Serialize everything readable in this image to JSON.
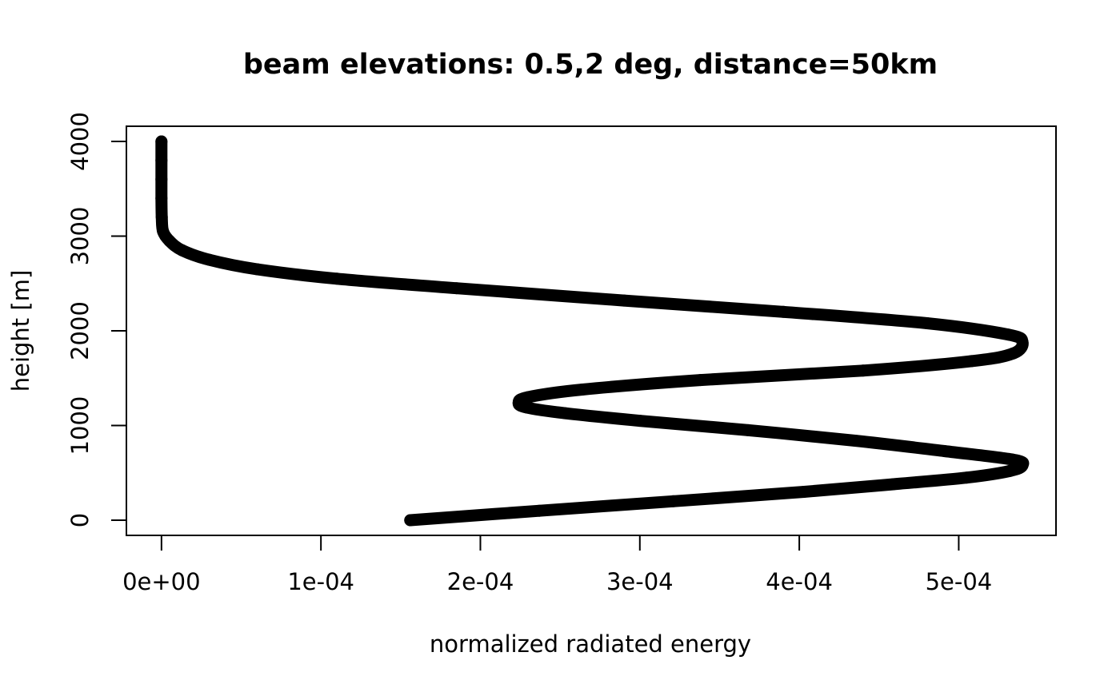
{
  "chart_data": {
    "type": "line",
    "title": "beam elevations: 0.5,2 deg, distance=50km",
    "xlabel": "normalized radiated energy",
    "ylabel": "height [m]",
    "xlim": [
      -2.2e-05,
      0.000561
    ],
    "ylim": [
      -160,
      4160
    ],
    "x_ticks": [
      0,
      0.0001,
      0.0002,
      0.0003,
      0.0004,
      0.0005
    ],
    "x_tick_labels": [
      "0e+00",
      "1e-04",
      "2e-04",
      "3e-04",
      "4e-04",
      "5e-04"
    ],
    "y_ticks": [
      0,
      1000,
      2000,
      3000,
      4000
    ],
    "y_tick_labels": [
      "0",
      "1000",
      "2000",
      "3000",
      "4000"
    ],
    "grid": false,
    "series": [
      {
        "color": "#000000",
        "x": [
          0.000156,
          0.000237,
          0.000321,
          0.000403,
          0.000459,
          0.000505,
          0.000532,
          0.00054,
          0.000534,
          0.000491,
          0.000435,
          0.000368,
          0.0003,
          0.000253,
          0.000229,
          0.000224,
          0.00023,
          0.000264,
          0.000338,
          0.00044,
          0.000508,
          0.000534,
          0.00054,
          0.000531,
          0.00048,
          0.00039,
          0.00029,
          0.000185,
          0.00011,
          6e-05,
          3e-05,
          1.3e-05,
          5e-06,
          1e-06,
          2e-07,
          0.0,
          0.0,
          0.0,
          0.0
        ],
        "y": [
          0,
          100,
          200,
          300,
          380,
          450,
          520,
          580,
          640,
          730,
          840,
          950,
          1050,
          1130,
          1190,
          1240,
          1300,
          1380,
          1480,
          1580,
          1680,
          1760,
          1880,
          1960,
          2080,
          2200,
          2320,
          2450,
          2550,
          2650,
          2750,
          2850,
          2950,
          3050,
          3200,
          3400,
          3600,
          3800,
          4000
        ]
      }
    ]
  }
}
